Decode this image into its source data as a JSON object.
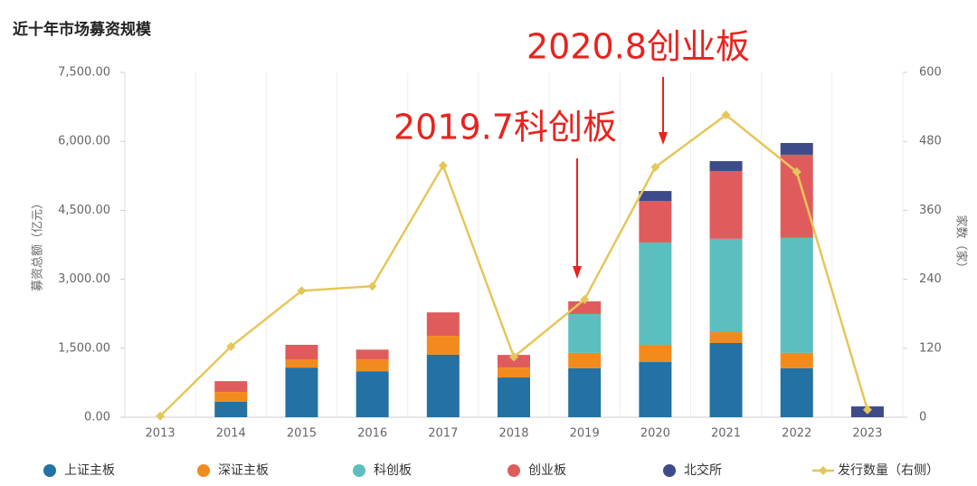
{
  "chart_data": {
    "type": "bar",
    "stacked": true,
    "title": "近十年市场募资规模",
    "y_label": "募资总额（亿元）",
    "y2_label": "家数（家）",
    "annotations": [
      "2019.7科创板",
      "2020.8创业板"
    ],
    "categories": [
      "2013",
      "2014",
      "2015",
      "2016",
      "2017",
      "2018",
      "2019",
      "2020",
      "2021",
      "2022",
      "2023"
    ],
    "series": [
      {
        "name": "上证主板",
        "color": "#2471a3",
        "values": [
          0,
          335,
          1080,
          1000,
          1360,
          865,
          1065,
          1200,
          1615,
          1065,
          0
        ]
      },
      {
        "name": "深证主板",
        "color": "#f28b1d",
        "values": [
          0,
          215,
          180,
          255,
          410,
          215,
          335,
          375,
          235,
          335,
          0
        ]
      },
      {
        "name": "科创板",
        "color": "#5bbfbf",
        "values": [
          0,
          0,
          0,
          0,
          0,
          0,
          845,
          2225,
          2030,
          2500,
          0
        ]
      },
      {
        "name": "创业板",
        "color": "#e05c5c",
        "values": [
          0,
          235,
          315,
          215,
          510,
          275,
          275,
          905,
          1475,
          1810,
          0
        ]
      },
      {
        "name": "北交所",
        "color": "#3d4b8a",
        "values": [
          0,
          0,
          0,
          0,
          0,
          0,
          0,
          215,
          215,
          255,
          235
        ]
      },
      {
        "name": "发行数量（右侧）",
        "color": "#e6c65a",
        "type": "line",
        "axis": "y2",
        "values": [
          2,
          123,
          220,
          228,
          438,
          105,
          205,
          435,
          526,
          427,
          13
        ]
      }
    ],
    "ylim": [
      0,
      7500
    ],
    "yticks": [
      {
        "value": 0,
        "label": "0.00"
      },
      {
        "value": 1500,
        "label": "1,500.00"
      },
      {
        "value": 3000,
        "label": "3,000.00"
      },
      {
        "value": 4500,
        "label": "4,500.00"
      },
      {
        "value": 6000,
        "label": "6,000.00"
      },
      {
        "value": 7500,
        "label": "7,500.00"
      }
    ],
    "y2lim": [
      0,
      600
    ],
    "y2ticks": [
      0,
      120,
      240,
      360,
      480,
      600
    ]
  }
}
